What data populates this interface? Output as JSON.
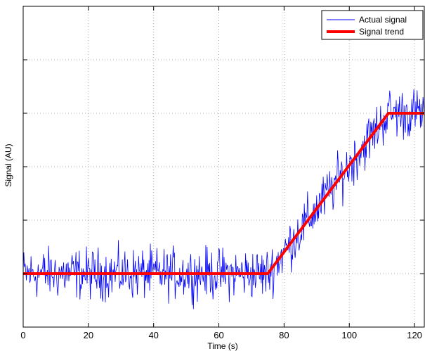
{
  "chart_data": {
    "type": "line",
    "title": "",
    "xlabel": "Time (s)",
    "ylabel": "Signal (AU)",
    "xlim": [
      0,
      123
    ],
    "x_ticks": [
      0,
      20,
      40,
      60,
      80,
      100,
      120
    ],
    "ylim": [
      0,
      6
    ],
    "y_ticks": [
      0,
      1,
      2,
      3,
      4,
      5,
      6
    ],
    "y_tick_labels_shown": false,
    "grid": true,
    "legend_position": "top-right",
    "series": [
      {
        "name": "Actual signal",
        "color": "#0000ff",
        "style": "thin noisy line, sampled every 0.2 s",
        "x": [
          0,
          4,
          8,
          12,
          16,
          20,
          24,
          28,
          32,
          36,
          40,
          44,
          48,
          52,
          56,
          60,
          64,
          68,
          72,
          75,
          78,
          80,
          84,
          88,
          92,
          96,
          100,
          104,
          108,
          112,
          116,
          120,
          123
        ],
        "y_trend": [
          1.0,
          1.0,
          1.0,
          1.0,
          1.0,
          1.0,
          1.0,
          1.0,
          1.0,
          1.0,
          1.0,
          1.0,
          1.0,
          1.0,
          1.0,
          1.0,
          1.0,
          1.0,
          1.0,
          1.0,
          1.24,
          1.41,
          1.73,
          2.05,
          2.38,
          2.7,
          3.03,
          3.35,
          3.68,
          4.0,
          4.0,
          4.0,
          4.0
        ],
        "noise_amplitude": 0.7
      },
      {
        "name": "Signal trend",
        "color": "#ff0000",
        "style": "thick line",
        "x": [
          0,
          75,
          112,
          123
        ],
        "y": [
          1.0,
          1.0,
          4.0,
          4.0
        ]
      }
    ]
  }
}
